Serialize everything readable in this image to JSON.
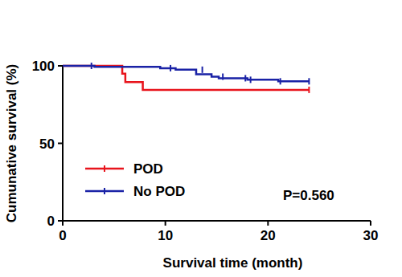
{
  "chart_data": {
    "type": "line",
    "line_style": "step",
    "marker": "tick",
    "xlabel": "Survival time (month)",
    "ylabel": "Cumunative survival (%)",
    "xlim": [
      0,
      30
    ],
    "xticks": [
      0,
      10,
      20,
      30
    ],
    "ylim": [
      0,
      100
    ],
    "yticks": [
      0,
      50,
      100
    ],
    "grid": false,
    "legend": "left",
    "annotation": "P=0.560",
    "series": [
      {
        "name": "POD",
        "color": "#e8141c",
        "x": [
          0,
          5.8,
          6.1,
          7.8,
          24
        ],
        "values": [
          100,
          95,
          89.5,
          84.5,
          84.5
        ],
        "censor_x": [
          24
        ],
        "censor_values": [
          84.5
        ]
      },
      {
        "name": "No POD",
        "color": "#1a22a6",
        "x": [
          0,
          3.1,
          9.5,
          11,
          13,
          14.5,
          15.2,
          18,
          21,
          24
        ],
        "values": [
          100,
          99.3,
          98.5,
          97.5,
          94.5,
          93,
          92,
          91,
          90,
          90
        ],
        "censor_x": [
          2.8,
          10.5,
          13.6,
          15.6,
          17.8,
          18.3,
          21.2,
          24
        ],
        "censor_values": [
          100,
          98.5,
          97.5,
          93,
          92,
          91,
          90,
          90
        ]
      }
    ]
  }
}
